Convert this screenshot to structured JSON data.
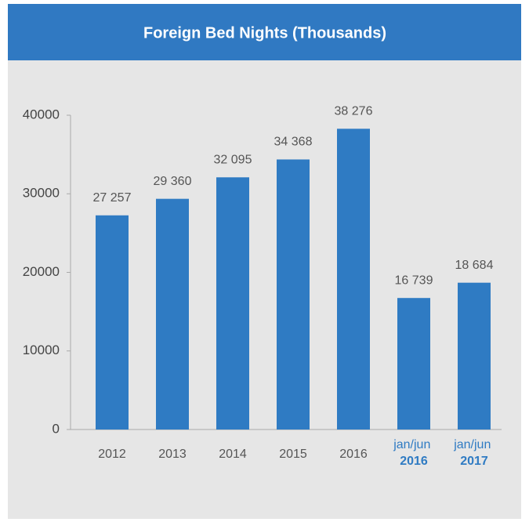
{
  "chart_data": {
    "type": "bar",
    "title": "Foreign Bed Nights (Thousands)",
    "categories": [
      "2012",
      "2013",
      "2014",
      "2015",
      "2016",
      "jan/jun 2016",
      "jan/jun 2017"
    ],
    "values": [
      27257,
      29360,
      32095,
      34368,
      38276,
      16739,
      18684
    ],
    "value_labels": [
      "27 257",
      "29 360",
      "32 095",
      "34 368",
      "38 276",
      "16 739",
      "18 684"
    ],
    "color": "#2f7bc3",
    "ylim": [
      0,
      40000
    ],
    "yticks": [
      0,
      10000,
      20000,
      30000,
      40000
    ],
    "grid": false
  }
}
